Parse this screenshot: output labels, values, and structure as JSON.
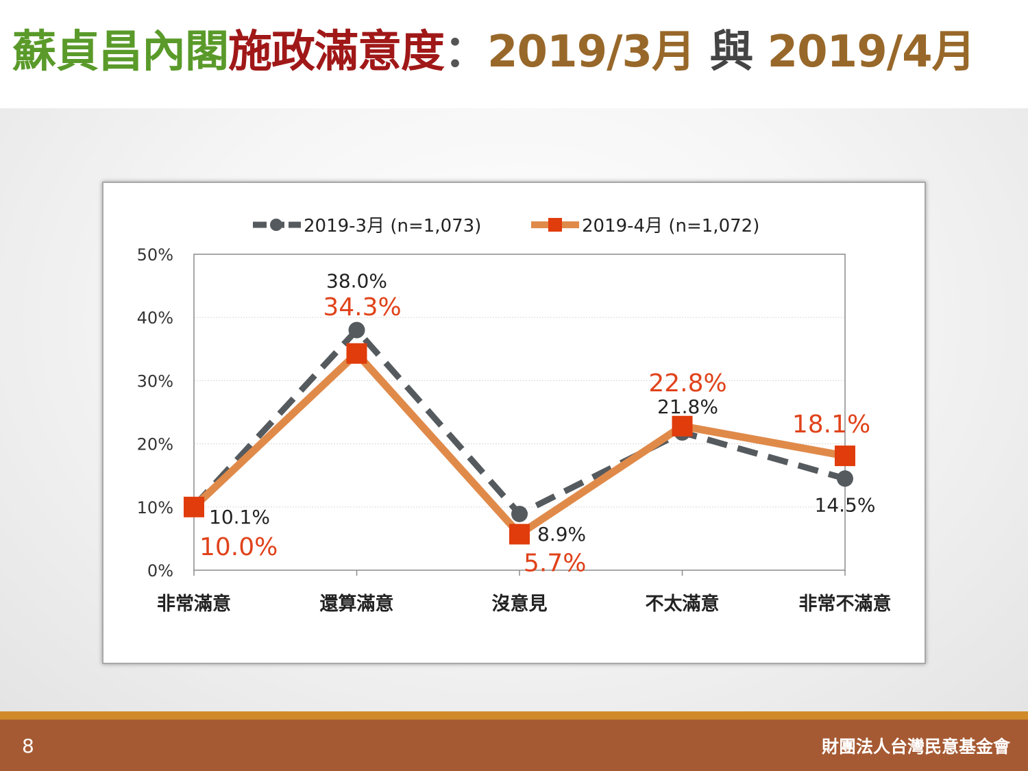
{
  "header": {
    "title_part1": "蘇貞昌內閣",
    "title_part2": "施政滿意度",
    "title_colon": "：",
    "title_part3": "2019/3月",
    "title_part4": " 與 ",
    "title_part5": "2019/4月"
  },
  "chart_data": {
    "type": "line",
    "categories": [
      "非常滿意",
      "還算滿意",
      "沒意見",
      "不太滿意",
      "非常不滿意"
    ],
    "y_ticks": [
      "0%",
      "10%",
      "20%",
      "30%",
      "40%",
      "50%"
    ],
    "ylim": [
      0,
      50
    ],
    "grid": true,
    "legend_position": "top",
    "series": [
      {
        "name": "2019-3月 (n=1,073)",
        "values": [
          10.1,
          38.0,
          8.9,
          21.8,
          14.5
        ],
        "labels": [
          "10.1%",
          "38.0%",
          "8.9%",
          "21.8%",
          "14.5%"
        ],
        "color": "#555a5e",
        "label_color": "#222222",
        "style": "dashed",
        "marker": "circle"
      },
      {
        "name": "2019-4月 (n=1,072)",
        "values": [
          10.0,
          34.3,
          5.7,
          22.8,
          18.1
        ],
        "labels": [
          "10.0%",
          "34.3%",
          "5.7%",
          "22.8%",
          "18.1%"
        ],
        "color": "#e08a4a",
        "marker_color": "#e03c0c",
        "label_color": "#e0421a",
        "style": "solid",
        "marker": "square"
      }
    ]
  },
  "footer": {
    "page_number": "8",
    "organization": "財團法人台灣民意基金會"
  }
}
